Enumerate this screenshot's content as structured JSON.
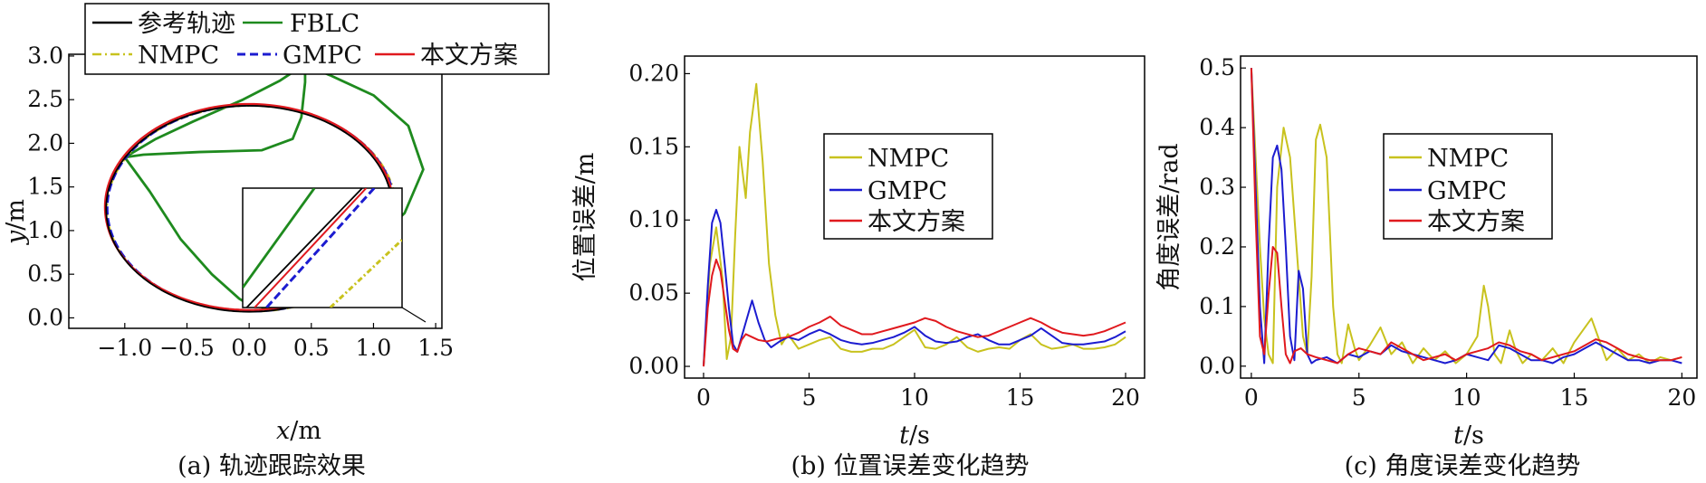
{
  "colors": {
    "reference": "#000000",
    "fblc": "#1e8a1e",
    "nmpc": "#c8c21e",
    "gmpc": "#1c1cd0",
    "proposed": "#e0191e"
  },
  "chart_data": [
    {
      "type": "line",
      "caption": "(a) 轨迹跟踪效果",
      "xlabel_var": "x",
      "xlabel_unit": "/m",
      "ylabel_var": "y",
      "ylabel_unit": "/m",
      "xlim": [
        -1.45,
        1.55
      ],
      "ylim": [
        -0.12,
        3.02
      ],
      "xticks": [
        -1.0,
        -0.5,
        0.0,
        0.5,
        1.0,
        1.5
      ],
      "xtick_labels": [
        "−1.0",
        "−0.5",
        "0.0",
        "0.5",
        "1.0",
        "1.5"
      ],
      "yticks": [
        0.0,
        0.5,
        1.0,
        1.5,
        2.0,
        2.5,
        3.0
      ],
      "ytick_labels": [
        "0.0",
        "0.5",
        "1.0",
        "1.5",
        "2.0",
        "2.5",
        "3.0"
      ],
      "legend": {
        "position": "top-left",
        "entries": [
          {
            "label": "参考轨迹",
            "color": "#000000",
            "style": "solid"
          },
          {
            "label": "FBLC",
            "color": "#1e8a1e",
            "style": "solid"
          },
          {
            "label": "NMPC",
            "color": "#c8c21e",
            "style": "dashdot"
          },
          {
            "label": "GMPC",
            "color": "#1c1cd0",
            "style": "dashed"
          },
          {
            "label": "本文方案",
            "color": "#e0191e",
            "style": "solid"
          }
        ]
      },
      "reference_ellipse": {
        "center": [
          0.0,
          1.25
        ],
        "radii": [
          1.15,
          1.18
        ]
      },
      "fblc_path": [
        [
          0.0,
          0.15
        ],
        [
          -0.08,
          0.22
        ],
        [
          -0.3,
          0.5
        ],
        [
          -0.55,
          0.9
        ],
        [
          -0.8,
          1.45
        ],
        [
          -1.0,
          1.84
        ],
        [
          -0.85,
          1.87
        ],
        [
          -0.4,
          1.9
        ],
        [
          0.1,
          1.92
        ],
        [
          0.35,
          2.05
        ],
        [
          0.42,
          2.3
        ],
        [
          0.45,
          2.7
        ],
        [
          0.45,
          2.9
        ],
        [
          0.65,
          2.78
        ],
        [
          1.0,
          2.55
        ],
        [
          1.28,
          2.2
        ],
        [
          1.4,
          1.7
        ],
        [
          1.25,
          1.2
        ],
        [
          0.95,
          0.8
        ],
        [
          0.6,
          0.45
        ],
        [
          0.3,
          0.22
        ],
        [
          0.1,
          0.1
        ]
      ],
      "fblc_start_path": [
        [
          -1.0,
          1.84
        ],
        [
          -0.75,
          2.05
        ],
        [
          -0.45,
          2.25
        ],
        [
          -0.05,
          2.5
        ],
        [
          0.25,
          2.72
        ],
        [
          0.4,
          2.86
        ],
        [
          0.45,
          2.9
        ]
      ],
      "nmpc_path": [
        [
          0.05,
          0.2
        ],
        [
          0.35,
          0.18
        ],
        [
          0.7,
          0.22
        ],
        [
          1.0,
          0.45
        ],
        [
          1.22,
          0.72
        ],
        [
          1.15,
          0.85
        ]
      ],
      "inset": {
        "x_range": [
          0.2,
          0.6
        ],
        "y_range": [
          2.0,
          2.3
        ]
      }
    },
    {
      "type": "line",
      "caption": "(b) 位置误差变化趋势",
      "xlabel_var": "t",
      "xlabel_unit": "/s",
      "ylabel": "位置误差/m",
      "xlim": [
        -0.9,
        20.9
      ],
      "ylim": [
        -0.008,
        0.212
      ],
      "xticks": [
        0,
        5,
        10,
        15,
        20
      ],
      "yticks": [
        0.0,
        0.05,
        0.1,
        0.15,
        0.2
      ],
      "ytick_labels": [
        "0.00",
        "0.05",
        "0.10",
        "0.15",
        "0.20"
      ],
      "legend": {
        "position": "upper-center",
        "entries": [
          "NMPC",
          "GMPC",
          "本文方案"
        ]
      },
      "series": [
        {
          "name": "NMPC",
          "color": "#c8c21e",
          "x": [
            0,
            0.3,
            0.6,
            0.9,
            1.1,
            1.3,
            1.5,
            1.7,
            2.0,
            2.2,
            2.5,
            2.8,
            3.1,
            3.4,
            3.7,
            4.0,
            4.5,
            5.0,
            5.5,
            6.0,
            6.5,
            7.0,
            7.5,
            8.0,
            8.5,
            9.0,
            9.5,
            10.0,
            10.5,
            11.0,
            11.5,
            12.0,
            12.5,
            13.0,
            13.5,
            14.0,
            14.5,
            15.0,
            15.5,
            16.0,
            16.5,
            17.0,
            17.5,
            18.0,
            18.5,
            19.0,
            19.5,
            20.0
          ],
          "y": [
            0,
            0.07,
            0.095,
            0.06,
            0.005,
            0.02,
            0.09,
            0.15,
            0.115,
            0.16,
            0.193,
            0.14,
            0.07,
            0.035,
            0.015,
            0.022,
            0.012,
            0.015,
            0.018,
            0.02,
            0.012,
            0.01,
            0.01,
            0.012,
            0.012,
            0.015,
            0.02,
            0.025,
            0.013,
            0.012,
            0.015,
            0.02,
            0.013,
            0.01,
            0.012,
            0.013,
            0.012,
            0.018,
            0.022,
            0.015,
            0.012,
            0.013,
            0.015,
            0.012,
            0.012,
            0.013,
            0.015,
            0.02
          ]
        },
        {
          "name": "GMPC",
          "color": "#1c1cd0",
          "x": [
            0,
            0.2,
            0.4,
            0.6,
            0.8,
            1.0,
            1.2,
            1.4,
            1.6,
            1.8,
            2.0,
            2.3,
            2.6,
            2.9,
            3.2,
            3.6,
            4.0,
            4.5,
            5.0,
            5.5,
            6.0,
            6.5,
            7.0,
            7.5,
            8.0,
            8.5,
            9.0,
            9.5,
            10.0,
            10.5,
            11.0,
            11.5,
            12.0,
            12.5,
            13.0,
            13.5,
            14.0,
            14.5,
            15.0,
            15.5,
            16.0,
            16.5,
            17.0,
            17.5,
            18.0,
            18.5,
            19.0,
            19.5,
            20.0
          ],
          "y": [
            0,
            0.055,
            0.098,
            0.107,
            0.098,
            0.07,
            0.04,
            0.015,
            0.01,
            0.02,
            0.03,
            0.045,
            0.03,
            0.018,
            0.013,
            0.017,
            0.02,
            0.018,
            0.022,
            0.025,
            0.022,
            0.018,
            0.016,
            0.015,
            0.016,
            0.018,
            0.02,
            0.023,
            0.027,
            0.021,
            0.017,
            0.016,
            0.017,
            0.02,
            0.022,
            0.018,
            0.015,
            0.015,
            0.018,
            0.021,
            0.026,
            0.021,
            0.016,
            0.015,
            0.015,
            0.016,
            0.017,
            0.02,
            0.024
          ]
        },
        {
          "name": "本文方案",
          "color": "#e0191e",
          "x": [
            0,
            0.2,
            0.4,
            0.6,
            0.8,
            1.0,
            1.2,
            1.4,
            1.6,
            1.8,
            2.0,
            2.3,
            2.6,
            3.0,
            3.5,
            4.0,
            4.5,
            5.0,
            5.5,
            6.0,
            6.5,
            7.0,
            7.5,
            8.0,
            8.5,
            9.0,
            9.5,
            10.0,
            10.5,
            11.0,
            11.5,
            12.0,
            12.5,
            13.0,
            13.5,
            14.0,
            14.5,
            15.0,
            15.5,
            16.0,
            16.5,
            17.0,
            17.5,
            18.0,
            18.5,
            19.0,
            19.5,
            20.0
          ],
          "y": [
            0,
            0.04,
            0.062,
            0.073,
            0.065,
            0.045,
            0.025,
            0.012,
            0.01,
            0.018,
            0.022,
            0.02,
            0.018,
            0.017,
            0.019,
            0.02,
            0.023,
            0.027,
            0.03,
            0.034,
            0.028,
            0.025,
            0.022,
            0.022,
            0.024,
            0.026,
            0.028,
            0.03,
            0.033,
            0.031,
            0.027,
            0.024,
            0.022,
            0.02,
            0.021,
            0.024,
            0.027,
            0.03,
            0.033,
            0.03,
            0.026,
            0.023,
            0.022,
            0.021,
            0.022,
            0.024,
            0.027,
            0.03
          ]
        }
      ]
    },
    {
      "type": "line",
      "caption": "(c) 角度误差变化趋势",
      "xlabel_var": "t",
      "xlabel_unit": "/s",
      "ylabel": "角度误差/rad",
      "xlim": [
        -0.5,
        20.7
      ],
      "ylim": [
        -0.02,
        0.52
      ],
      "xticks": [
        0,
        5,
        10,
        15,
        20
      ],
      "yticks": [
        0.0,
        0.1,
        0.2,
        0.3,
        0.4,
        0.5
      ],
      "ytick_labels": [
        "0.0",
        "0.1",
        "0.2",
        "0.3",
        "0.4",
        "0.5"
      ],
      "legend": {
        "position": "upper-center",
        "entries": [
          "NMPC",
          "GMPC",
          "本文方案"
        ]
      },
      "series": [
        {
          "name": "NMPC",
          "color": "#c8c21e",
          "x": [
            0,
            0.2,
            0.4,
            0.6,
            0.8,
            1.0,
            1.2,
            1.5,
            1.8,
            2.1,
            2.4,
            2.6,
            2.8,
            3.0,
            3.2,
            3.5,
            3.8,
            4.0,
            4.2,
            4.5,
            4.8,
            5.0,
            5.5,
            6.0,
            6.5,
            7.0,
            7.5,
            8.0,
            8.5,
            9.0,
            9.5,
            10.0,
            10.5,
            10.8,
            11.0,
            11.3,
            11.6,
            12.0,
            12.3,
            12.6,
            13.0,
            13.5,
            14.0,
            14.5,
            15.0,
            15.5,
            15.8,
            16.1,
            16.5,
            17.0,
            17.5,
            18.0,
            18.5,
            19.0,
            19.5,
            20.0
          ],
          "y": [
            0.5,
            0.35,
            0.2,
            0.08,
            0.02,
            0.005,
            0.3,
            0.4,
            0.35,
            0.2,
            0.05,
            0.02,
            0.15,
            0.38,
            0.405,
            0.35,
            0.1,
            0.02,
            0.005,
            0.07,
            0.03,
            0.01,
            0.035,
            0.065,
            0.02,
            0.04,
            0.005,
            0.03,
            0.01,
            0.025,
            0.005,
            0.02,
            0.05,
            0.135,
            0.1,
            0.02,
            0.005,
            0.06,
            0.025,
            0.005,
            0.02,
            0.01,
            0.03,
            0.005,
            0.04,
            0.065,
            0.08,
            0.05,
            0.01,
            0.03,
            0.01,
            0.02,
            0.005,
            0.015,
            0.01,
            0.015
          ]
        },
        {
          "name": "GMPC",
          "color": "#1c1cd0",
          "x": [
            0,
            0.2,
            0.4,
            0.6,
            0.8,
            1.0,
            1.2,
            1.4,
            1.6,
            1.8,
            2.0,
            2.2,
            2.4,
            2.6,
            2.8,
            3.0,
            3.5,
            4.0,
            4.5,
            5.0,
            5.5,
            6.0,
            6.5,
            7.0,
            7.5,
            8.0,
            8.5,
            9.0,
            9.5,
            10.0,
            10.5,
            11.0,
            11.5,
            12.0,
            12.5,
            13.0,
            13.5,
            14.0,
            14.5,
            15.0,
            15.5,
            16.0,
            16.5,
            17.0,
            17.5,
            18.0,
            18.5,
            19.0,
            19.5,
            20.0
          ],
          "y": [
            0.5,
            0.3,
            0.1,
            0.005,
            0.2,
            0.35,
            0.37,
            0.33,
            0.2,
            0.05,
            0.01,
            0.16,
            0.13,
            0.02,
            0.005,
            0.01,
            0.015,
            0.005,
            0.02,
            0.015,
            0.025,
            0.02,
            0.035,
            0.025,
            0.02,
            0.015,
            0.01,
            0.005,
            0.01,
            0.02,
            0.015,
            0.01,
            0.035,
            0.03,
            0.02,
            0.01,
            0.01,
            0.005,
            0.015,
            0.02,
            0.03,
            0.04,
            0.03,
            0.02,
            0.01,
            0.01,
            0.005,
            0.01,
            0.01,
            0.005
          ]
        },
        {
          "name": "本文方案",
          "color": "#e0191e",
          "x": [
            0,
            0.2,
            0.4,
            0.6,
            0.8,
            1.0,
            1.2,
            1.4,
            1.6,
            1.8,
            2.0,
            2.3,
            2.6,
            3.0,
            3.5,
            4.0,
            4.5,
            5.0,
            5.5,
            6.0,
            6.5,
            7.0,
            7.5,
            8.0,
            8.5,
            9.0,
            9.5,
            10.0,
            10.5,
            11.0,
            11.5,
            12.0,
            12.5,
            13.0,
            13.5,
            14.0,
            14.5,
            15.0,
            15.5,
            16.0,
            16.5,
            17.0,
            17.5,
            18.0,
            18.5,
            19.0,
            19.5,
            20.0
          ],
          "y": [
            0.5,
            0.25,
            0.05,
            0.02,
            0.12,
            0.2,
            0.19,
            0.1,
            0.02,
            0.005,
            0.025,
            0.03,
            0.02,
            0.015,
            0.01,
            0.005,
            0.02,
            0.03,
            0.025,
            0.02,
            0.04,
            0.03,
            0.02,
            0.01,
            0.015,
            0.02,
            0.01,
            0.02,
            0.025,
            0.03,
            0.04,
            0.035,
            0.025,
            0.02,
            0.01,
            0.015,
            0.02,
            0.025,
            0.035,
            0.045,
            0.04,
            0.03,
            0.02,
            0.015,
            0.01,
            0.01,
            0.01,
            0.015
          ]
        }
      ]
    }
  ]
}
